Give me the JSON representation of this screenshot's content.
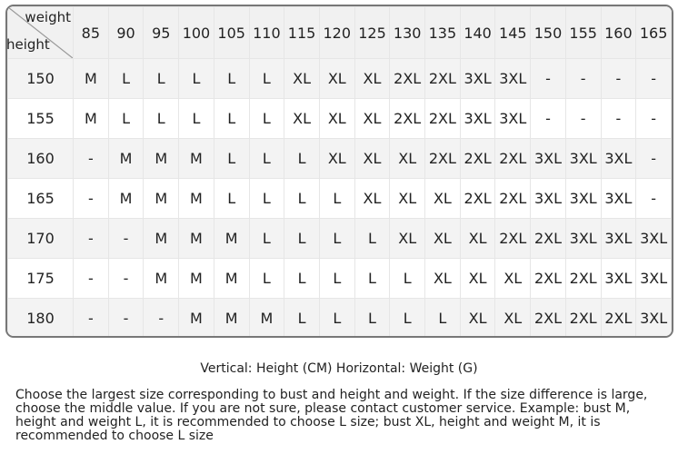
{
  "table": {
    "corner_top": "weight",
    "corner_bottom": "height",
    "weights": [
      "85",
      "90",
      "95",
      "100",
      "105",
      "110",
      "115",
      "120",
      "125",
      "130",
      "135",
      "140",
      "145",
      "150",
      "155",
      "160",
      "165"
    ],
    "rows": [
      {
        "height": "150",
        "sizes": [
          "M",
          "L",
          "L",
          "L",
          "L",
          "L",
          "XL",
          "XL",
          "XL",
          "2XL",
          "2XL",
          "3XL",
          "3XL",
          "-",
          "-",
          "-",
          "-"
        ]
      },
      {
        "height": "155",
        "sizes": [
          "M",
          "L",
          "L",
          "L",
          "L",
          "L",
          "XL",
          "XL",
          "XL",
          "2XL",
          "2XL",
          "3XL",
          "3XL",
          "-",
          "-",
          "-",
          "-"
        ]
      },
      {
        "height": "160",
        "sizes": [
          "-",
          "M",
          "M",
          "M",
          "L",
          "L",
          "L",
          "XL",
          "XL",
          "XL",
          "2XL",
          "2XL",
          "2XL",
          "3XL",
          "3XL",
          "3XL",
          "-"
        ]
      },
      {
        "height": "165",
        "sizes": [
          "-",
          "M",
          "M",
          "M",
          "L",
          "L",
          "L",
          "L",
          "XL",
          "XL",
          "XL",
          "2XL",
          "2XL",
          "3XL",
          "3XL",
          "3XL",
          "-"
        ]
      },
      {
        "height": "170",
        "sizes": [
          "-",
          "-",
          "M",
          "M",
          "M",
          "L",
          "L",
          "L",
          "L",
          "XL",
          "XL",
          "XL",
          "2XL",
          "2XL",
          "3XL",
          "3XL",
          "3XL"
        ]
      },
      {
        "height": "175",
        "sizes": [
          "-",
          "-",
          "M",
          "M",
          "M",
          "L",
          "L",
          "L",
          "L",
          "L",
          "XL",
          "XL",
          "XL",
          "2XL",
          "2XL",
          "3XL",
          "3XL"
        ]
      },
      {
        "height": "180",
        "sizes": [
          "-",
          "-",
          "-",
          "M",
          "M",
          "M",
          "L",
          "L",
          "L",
          "L",
          "L",
          "XL",
          "XL",
          "2XL",
          "2XL",
          "2XL",
          "3XL"
        ]
      }
    ]
  },
  "caption": "Vertical: Height (CM) Horizontal: Weight (G)",
  "note": "Choose the largest size corresponding to bust and height and weight. If the size difference is large, choose the middle value. If you are not sure, please contact customer service. Example: bust M, height and weight L, it is recommended to choose L size; bust XL, height and weight M, it is recommended to choose L size"
}
